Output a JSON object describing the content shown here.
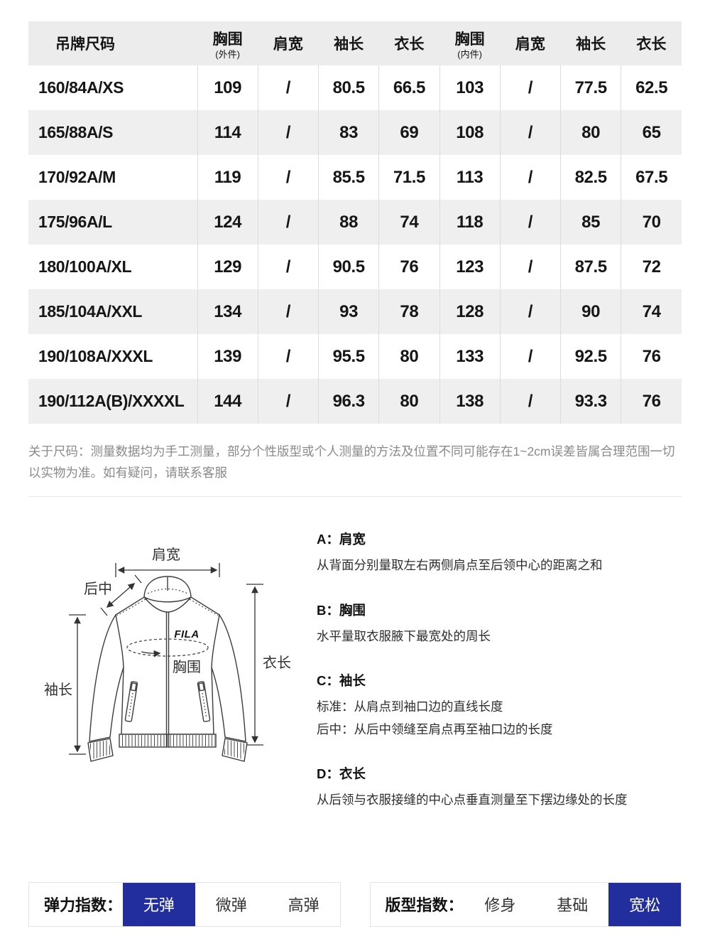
{
  "size_table": {
    "headers": [
      {
        "label": "吊牌尺码",
        "sub": ""
      },
      {
        "label": "胸围",
        "sub": "(外件)"
      },
      {
        "label": "肩宽",
        "sub": ""
      },
      {
        "label": "袖长",
        "sub": ""
      },
      {
        "label": "衣长",
        "sub": ""
      },
      {
        "label": "胸围",
        "sub": "(内件)"
      },
      {
        "label": "肩宽",
        "sub": ""
      },
      {
        "label": "袖长",
        "sub": ""
      },
      {
        "label": "衣长",
        "sub": ""
      }
    ],
    "rows": [
      [
        "160/84A/XS",
        "109",
        "/",
        "80.5",
        "66.5",
        "103",
        "/",
        "77.5",
        "62.5"
      ],
      [
        "165/88A/S",
        "114",
        "/",
        "83",
        "69",
        "108",
        "/",
        "80",
        "65"
      ],
      [
        "170/92A/M",
        "119",
        "/",
        "85.5",
        "71.5",
        "113",
        "/",
        "82.5",
        "67.5"
      ],
      [
        "175/96A/L",
        "124",
        "/",
        "88",
        "74",
        "118",
        "/",
        "85",
        "70"
      ],
      [
        "180/100A/XL",
        "129",
        "/",
        "90.5",
        "76",
        "123",
        "/",
        "87.5",
        "72"
      ],
      [
        "185/104A/XXL",
        "134",
        "/",
        "93",
        "78",
        "128",
        "/",
        "90",
        "74"
      ],
      [
        "190/108A/XXXL",
        "139",
        "/",
        "95.5",
        "80",
        "133",
        "/",
        "92.5",
        "76"
      ],
      [
        "190/112A(B)/XXXXL",
        "144",
        "/",
        "96.3",
        "80",
        "138",
        "/",
        "93.3",
        "76"
      ]
    ]
  },
  "note": {
    "text": "关于尺码：测量数据均为手工测量，部分个性版型或个人测量的方法及位置不同可能存在1~2cm误差皆属合理范围一切以实物为准。如有疑问，请联系客服"
  },
  "diagram": {
    "brand": "FILA",
    "labels": {
      "shoulder": "肩宽",
      "back_center": "后中",
      "sleeve": "袖长",
      "length": "衣长",
      "chest": "胸围"
    }
  },
  "measure_guide": {
    "a": {
      "title": "A：肩宽",
      "line1": "从背面分别量取左右两侧肩点至后领中心的距离之和"
    },
    "b": {
      "title": "B：胸围",
      "line1": "水平量取衣服腋下最宽处的周长"
    },
    "c": {
      "title": "C：袖长",
      "line1": "标准：从肩点到袖口边的直线长度",
      "line2": "后中：从后中领缝至肩点再至袖口边的长度"
    },
    "d": {
      "title": "D：衣长",
      "line1": "从后领与衣服接缝的中心点垂直测量至下摆边缘处的长度"
    }
  },
  "indices": {
    "elasticity": {
      "label": "弹力指数：",
      "options": [
        "无弹",
        "微弹",
        "高弹"
      ],
      "selected": "无弹"
    },
    "fit": {
      "label": "版型指数：",
      "options": [
        "修身",
        "基础",
        "宽松"
      ],
      "selected": "宽松"
    }
  },
  "colors": {
    "accent_blue": "#222E9E",
    "header_bg": "#ececec",
    "row_stripe": "#efefef"
  }
}
